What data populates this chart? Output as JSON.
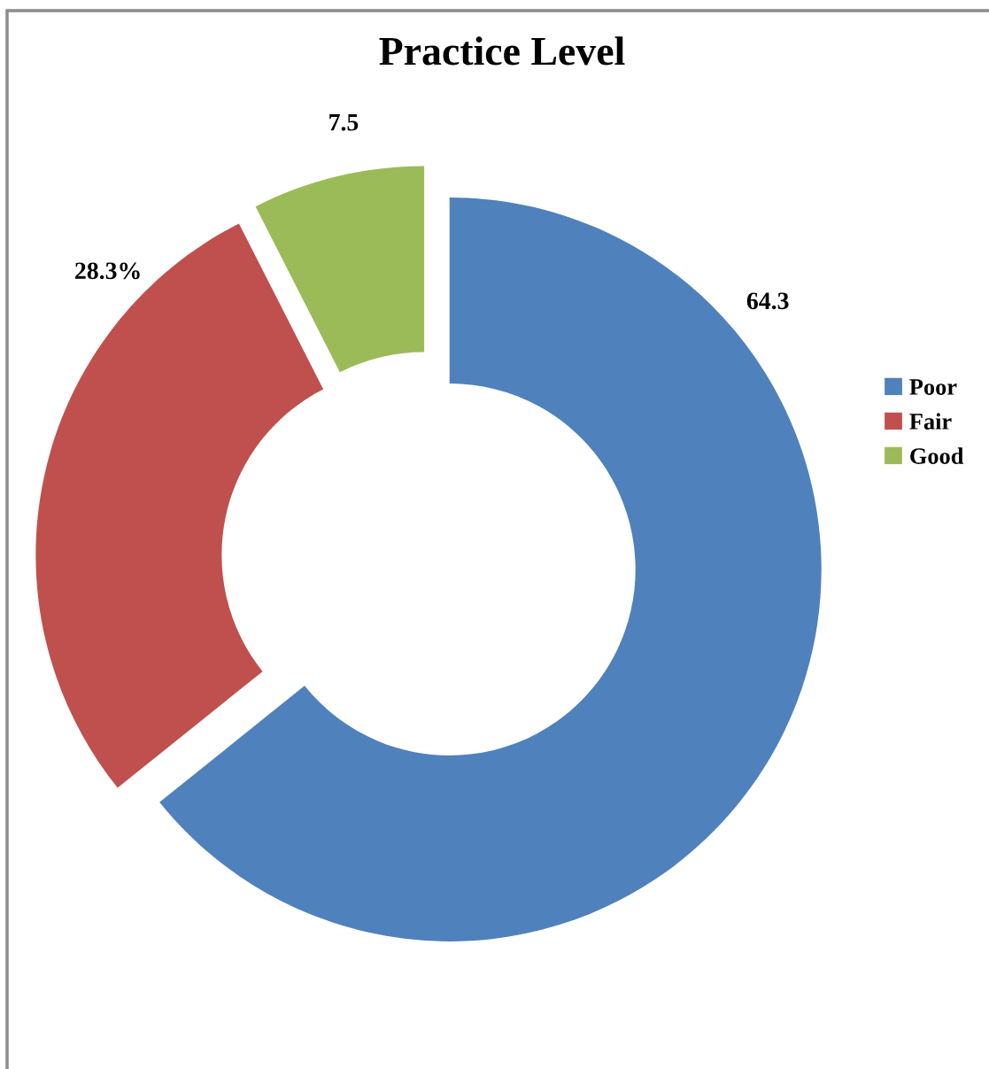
{
  "chart_data": {
    "type": "donut",
    "title": "Practice Level",
    "categories": [
      "Poor",
      "Fair",
      "Good"
    ],
    "values": [
      64.3,
      28.3,
      7.5
    ],
    "colors": [
      "#4f81bd",
      "#c0504d",
      "#9bbb59"
    ],
    "value_labels": [
      "64.3",
      "28.3%",
      "7.5"
    ],
    "legend": "right"
  }
}
